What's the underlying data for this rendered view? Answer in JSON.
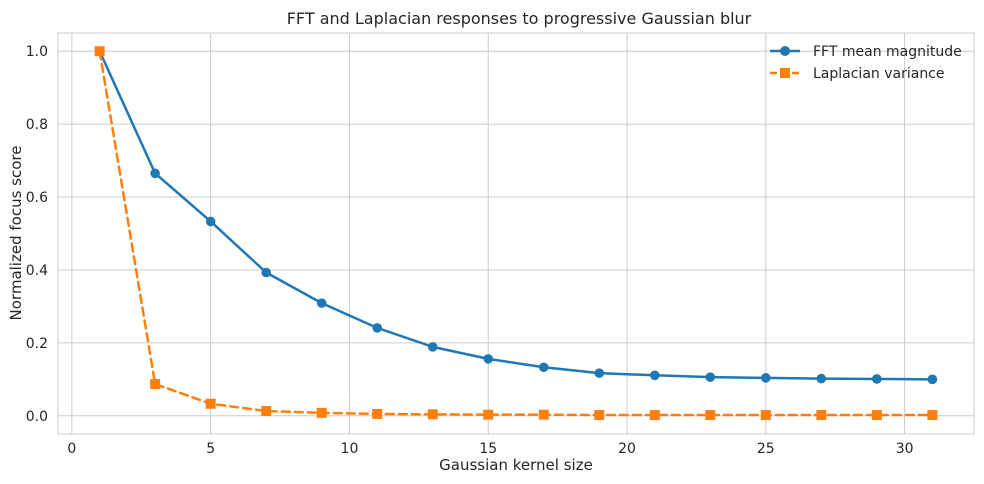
{
  "chart_data": {
    "type": "line",
    "title": "FFT and Laplacian responses to progressive Gaussian blur",
    "xlabel": "Gaussian kernel size",
    "ylabel": "Normalized focus score",
    "xlim": [
      -0.5,
      32.5
    ],
    "ylim": [
      -0.05,
      1.05
    ],
    "xticks": [
      0,
      5,
      10,
      15,
      20,
      25,
      30
    ],
    "yticks": [
      0.0,
      0.2,
      0.4,
      0.6,
      0.8,
      1.0
    ],
    "xtick_labels": [
      "0",
      "5",
      "10",
      "15",
      "20",
      "25",
      "30"
    ],
    "ytick_labels": [
      "0.0",
      "0.2",
      "0.4",
      "0.6",
      "0.8",
      "1.0"
    ],
    "grid": true,
    "legend": "top-right",
    "x": [
      1,
      3,
      5,
      7,
      9,
      11,
      13,
      15,
      17,
      19,
      21,
      23,
      25,
      27,
      29,
      31
    ],
    "series": [
      {
        "name": "FFT mean magnitude",
        "color": "#1f77b4",
        "marker": "circle",
        "linestyle": "solid",
        "values": [
          1.0,
          0.665,
          0.533,
          0.393,
          0.309,
          0.241,
          0.189,
          0.156,
          0.133,
          0.117,
          0.111,
          0.106,
          0.104,
          0.102,
          0.101,
          0.1
        ]
      },
      {
        "name": "Laplacian variance",
        "color": "#ff7f0e",
        "marker": "square",
        "linestyle": "dashed",
        "values": [
          1.0,
          0.087,
          0.033,
          0.013,
          0.008,
          0.005,
          0.004,
          0.003,
          0.003,
          0.002,
          0.002,
          0.002,
          0.002,
          0.002,
          0.002,
          0.002
        ]
      }
    ]
  }
}
